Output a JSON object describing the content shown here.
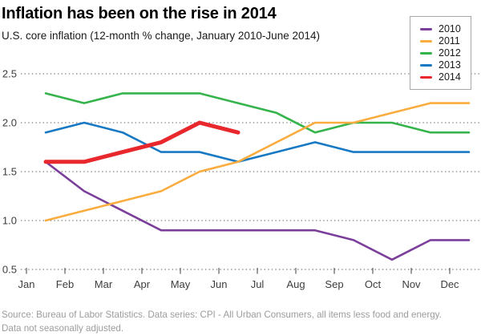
{
  "header": {
    "title": "Inflation has been on the rise in 2014",
    "subtitle": "U.S. core inflation (12-month % change, January 2010-June 2014)"
  },
  "chart_data": {
    "type": "line",
    "title": "Inflation has been on the rise in 2014",
    "subtitle": "U.S. core inflation (12-month % change, January 2010-June 2014)",
    "categories": [
      "Jan",
      "Feb",
      "Mar",
      "Apr",
      "May",
      "Jun",
      "Jul",
      "Aug",
      "Sep",
      "Oct",
      "Nov",
      "Dec"
    ],
    "series": [
      {
        "name": "2010",
        "color": "#7B3F9B",
        "stroke_width": 2.6,
        "values": [
          1.6,
          1.3,
          1.1,
          0.9,
          0.9,
          0.9,
          0.9,
          0.9,
          0.8,
          0.6,
          0.8,
          0.8
        ]
      },
      {
        "name": "2011",
        "color": "#FBAC3E",
        "stroke_width": 2.6,
        "values": [
          1.0,
          1.1,
          1.2,
          1.3,
          1.5,
          1.6,
          1.8,
          2.0,
          2.0,
          2.1,
          2.2,
          2.2
        ]
      },
      {
        "name": "2012",
        "color": "#34B44A",
        "stroke_width": 2.6,
        "values": [
          2.3,
          2.2,
          2.3,
          2.3,
          2.3,
          2.2,
          2.1,
          1.9,
          2.0,
          2.0,
          1.9,
          1.9
        ]
      },
      {
        "name": "2013",
        "color": "#1779C4",
        "stroke_width": 2.6,
        "values": [
          1.9,
          2.0,
          1.9,
          1.7,
          1.7,
          1.6,
          1.7,
          1.8,
          1.7,
          1.7,
          1.7,
          1.7
        ]
      },
      {
        "name": "2014",
        "color": "#E8282D",
        "stroke_width": 5,
        "values": [
          1.6,
          1.6,
          1.7,
          1.8,
          2.0,
          1.9
        ]
      }
    ],
    "ylim": [
      0.5,
      2.5
    ],
    "yticks": [
      "2.5",
      "2.0",
      "1.5",
      "1.0",
      "0.5"
    ],
    "grid": "horizontal-dotted",
    "legend_position": "top-right",
    "draw_order": [
      "2010",
      "2012",
      "2013",
      "2011",
      "2014"
    ]
  },
  "footer": {
    "source_line1": "Source: Bureau of Labor Statistics. Data series: CPI - All Urban Consumers, all items less food and energy.",
    "source_line2": "Data not seasonally adjusted."
  }
}
